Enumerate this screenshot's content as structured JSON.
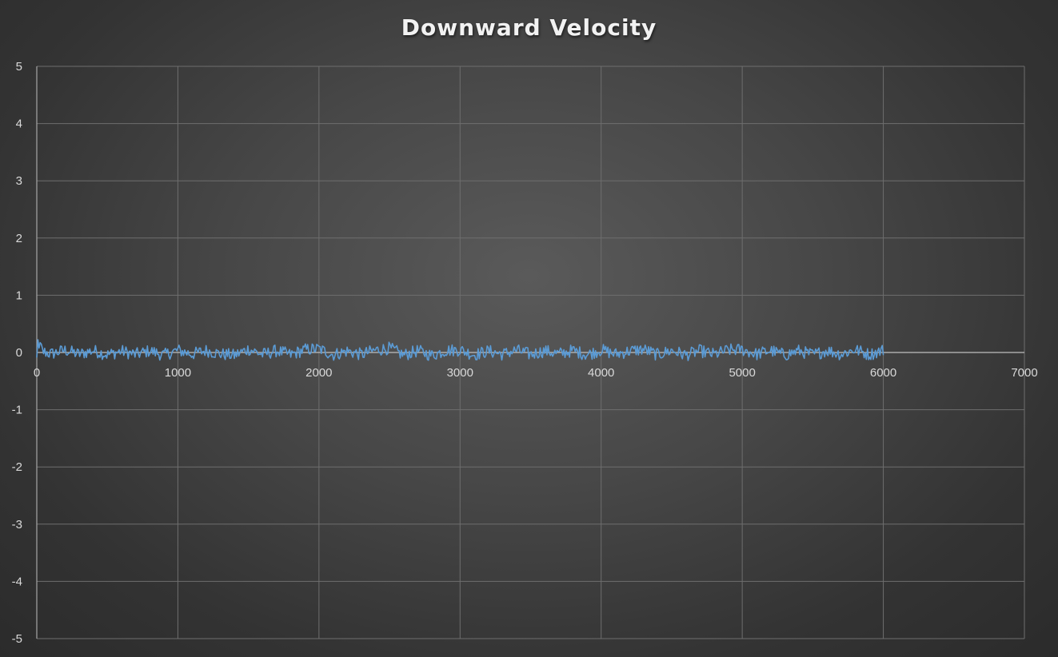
{
  "chart_data": {
    "type": "line",
    "title": "Downward Velocity",
    "xlabel": "",
    "ylabel": "",
    "xlim": [
      0,
      7000
    ],
    "ylim": [
      -5,
      5
    ],
    "x_ticks": [
      0,
      1000,
      2000,
      3000,
      4000,
      5000,
      6000,
      7000
    ],
    "y_ticks": [
      5,
      4,
      3,
      2,
      1,
      0,
      -1,
      -2,
      -3,
      -4,
      -5
    ],
    "grid": true,
    "legend": "none",
    "series": [
      {
        "color": "#5b9bd5",
        "x_start": 0,
        "x_end": 6000,
        "x": [
          0,
          100,
          200,
          300,
          400,
          500,
          600,
          700,
          800,
          900,
          1000,
          1100,
          1200,
          1300,
          1400,
          1500,
          1600,
          1700,
          1800,
          1900,
          2000,
          2100,
          2200,
          2300,
          2400,
          2500,
          2600,
          2700,
          2800,
          2900,
          3000,
          3100,
          3200,
          3300,
          3400,
          3500,
          3600,
          3700,
          3800,
          3900,
          4000,
          4100,
          4200,
          4300,
          4400,
          4500,
          4600,
          4700,
          4800,
          4900,
          5000,
          5100,
          5200,
          5300,
          5400,
          5500,
          5600,
          5700,
          5800,
          5900,
          6000
        ],
        "y": [
          0.1,
          -0.05,
          0.08,
          -0.06,
          0.07,
          -0.08,
          0.05,
          -0.07,
          0.06,
          -0.09,
          0.08,
          -0.06,
          0.07,
          -0.05,
          -0.1,
          0.12,
          -0.07,
          0.06,
          -0.08,
          0.1,
          0.13,
          -0.08,
          0.05,
          -0.07,
          0.08,
          0.15,
          -0.09,
          0.06,
          -0.1,
          0.07,
          0.09,
          -0.08,
          0.05,
          -0.06,
          0.08,
          -0.07,
          0.06,
          -0.05,
          0.07,
          -0.08,
          0.09,
          -0.06,
          0.05,
          0.11,
          -0.08,
          0.07,
          -0.09,
          0.06,
          -0.07,
          0.08,
          0.1,
          -0.06,
          0.07,
          -0.09,
          0.06,
          -0.08,
          0.07,
          -0.06,
          0.1,
          -0.07,
          0.08
        ]
      }
    ]
  }
}
